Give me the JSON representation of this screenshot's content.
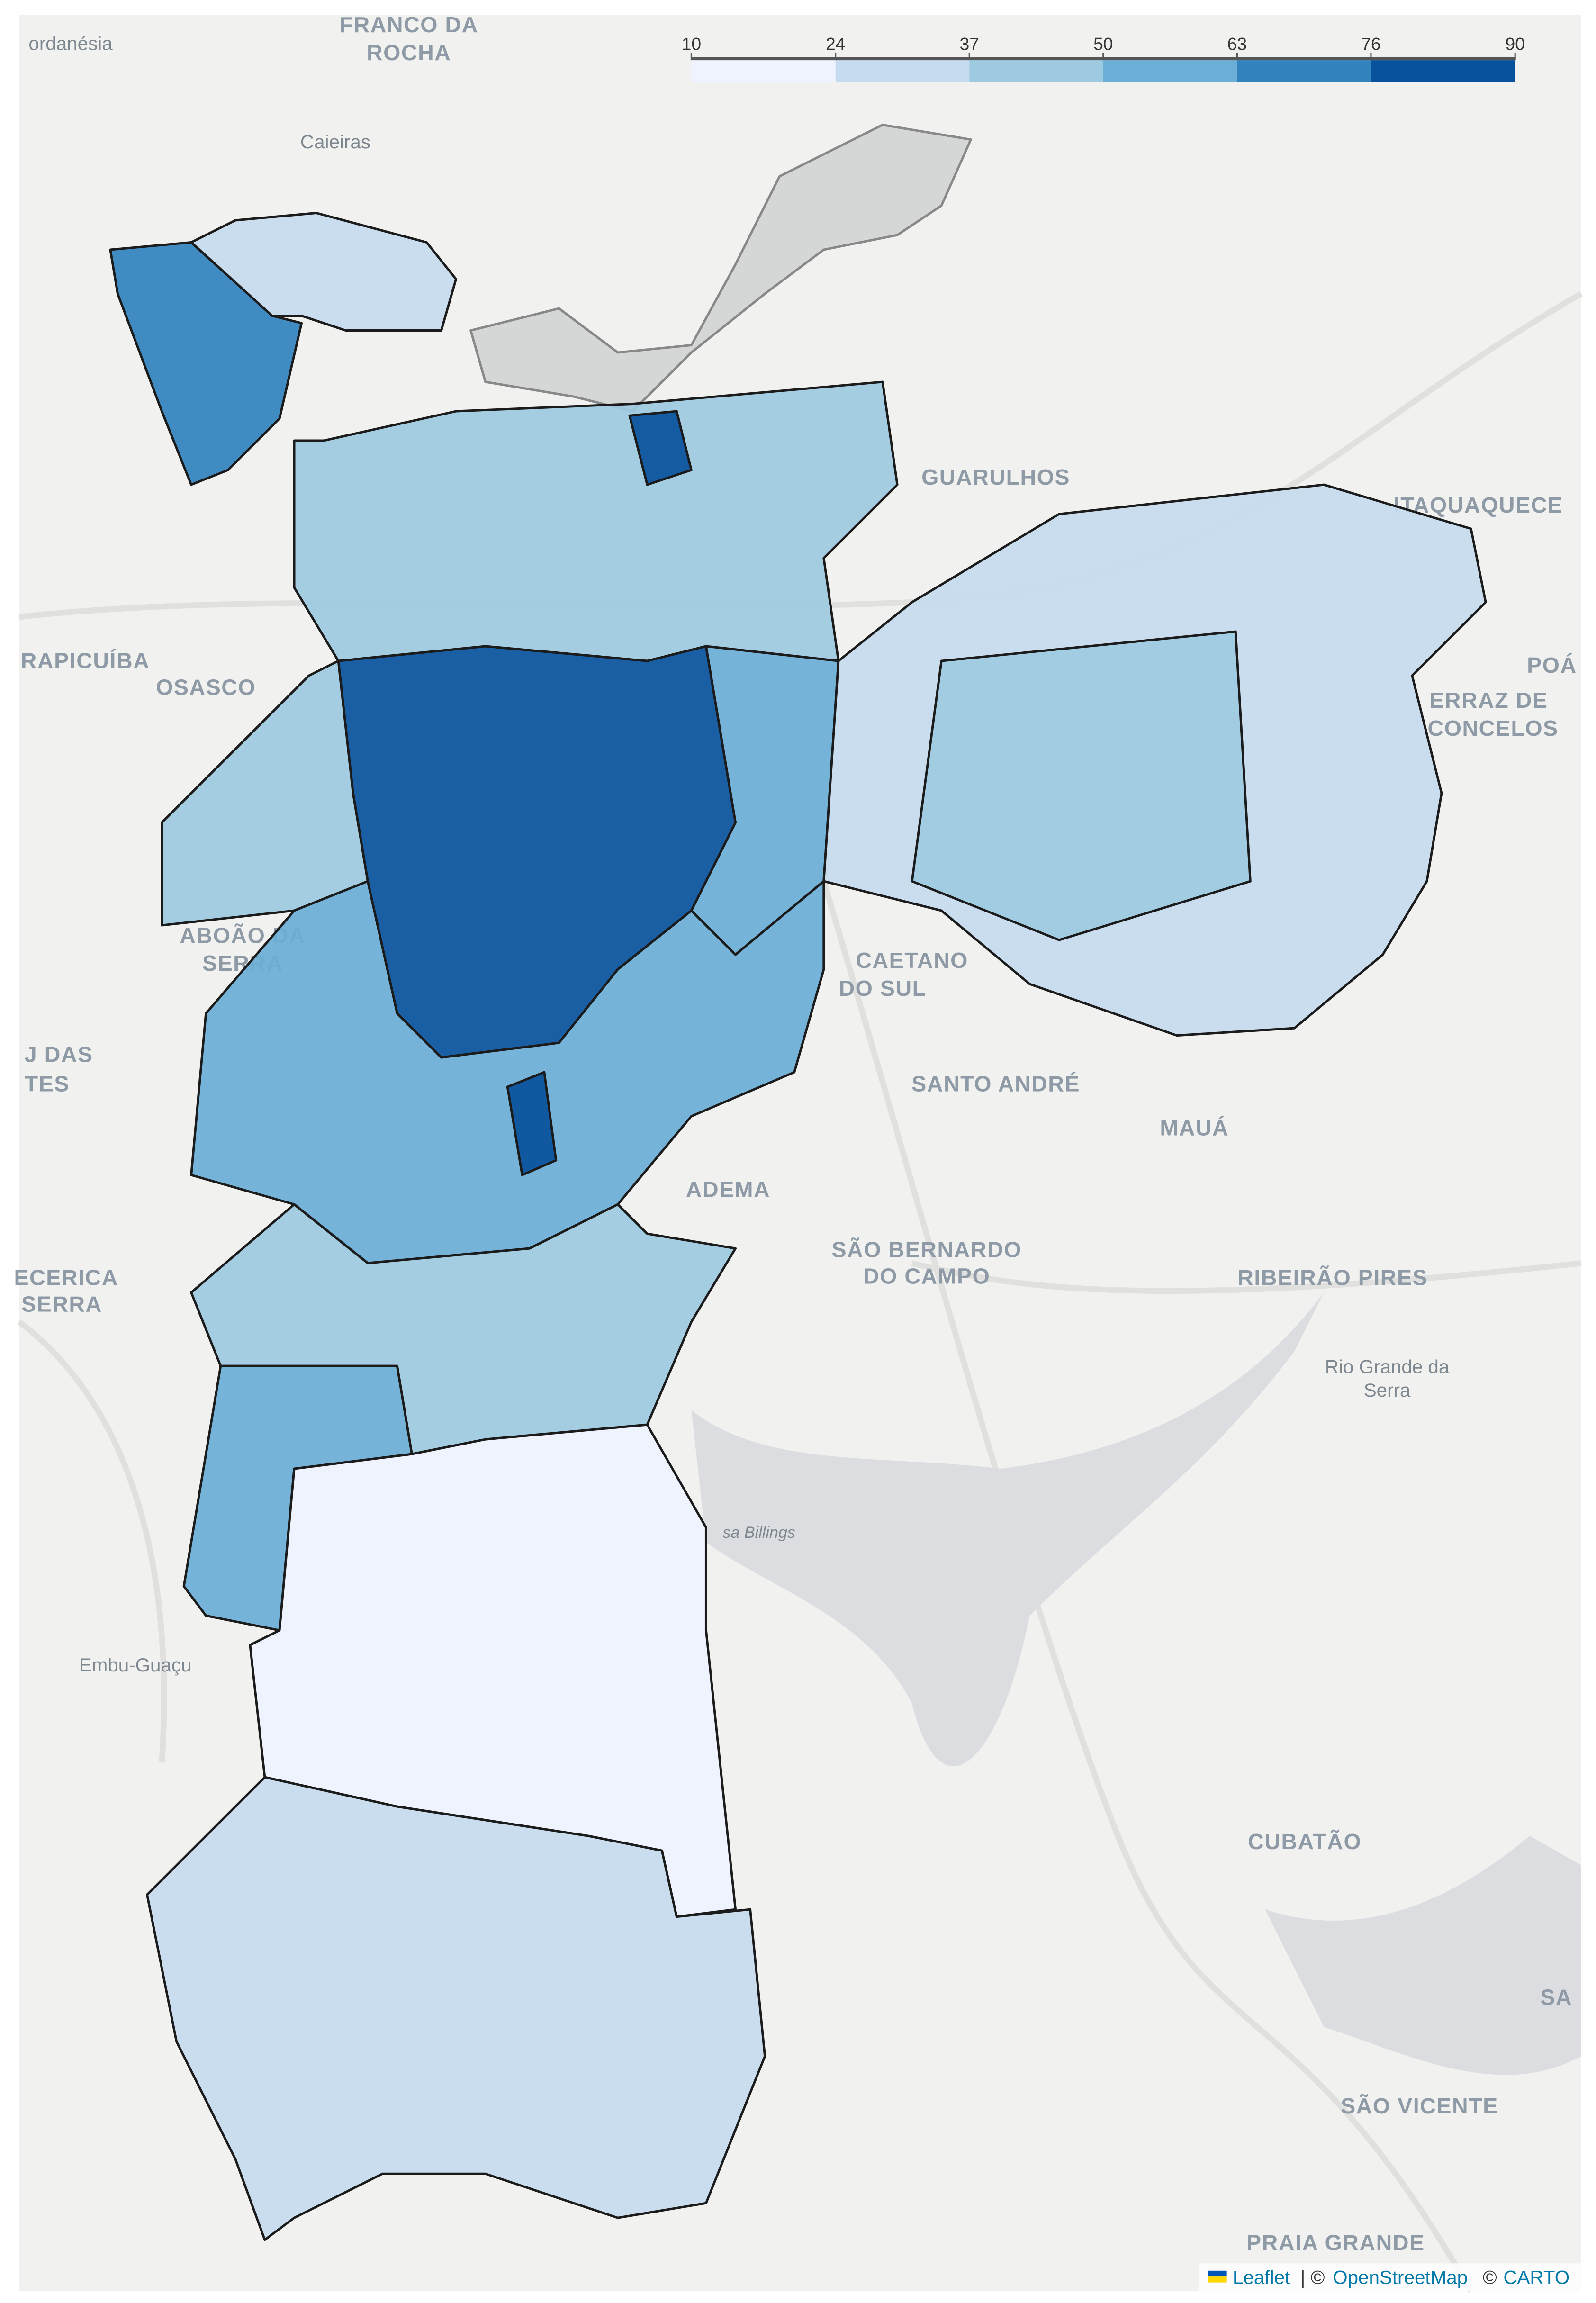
{
  "map": {
    "legend": {
      "ticks": [
        10,
        24,
        37,
        50,
        63,
        76,
        90
      ],
      "colors": [
        "#eff3ff",
        "#c6dbef",
        "#9ecae1",
        "#6baed6",
        "#3182bd",
        "#08519c"
      ]
    },
    "no_data_color": "#d4d7d5",
    "region_values": [
      65,
      30,
      45,
      78,
      82,
      55,
      42,
      35,
      48,
      50,
      80,
      58,
      40,
      15,
      27
    ],
    "place_labels": [
      "ordanésia",
      "FRANCO DA",
      "ROCHA",
      "Caieiras",
      "GUARULHOS",
      "ITAQUAQUECE",
      "RAPICUÍBA",
      "OSASCO",
      "POÁ",
      "ERRAZ DE",
      "CONCELOS",
      "ABOÃO DA",
      "SERRA",
      "CAETANO",
      "DO SUL",
      "J DAS",
      "TES",
      "SANTO ANDRÉ",
      "MAUÁ",
      "ADEMA",
      "SÃO BERNARDO",
      "DO CAMPO",
      "ECERICA",
      "SERRA",
      "RIBEIRÃO PIRES",
      "Rio Grande da",
      "Serra",
      "sa Billings",
      "Embu-Guaçu",
      "CUBATÃO",
      "SA",
      "SÃO VICENTE",
      "PRAIA GRANDE"
    ],
    "attribution": [
      "Leaflet",
      "| ©",
      "OpenStreetMap",
      "©",
      "CARTO"
    ]
  }
}
